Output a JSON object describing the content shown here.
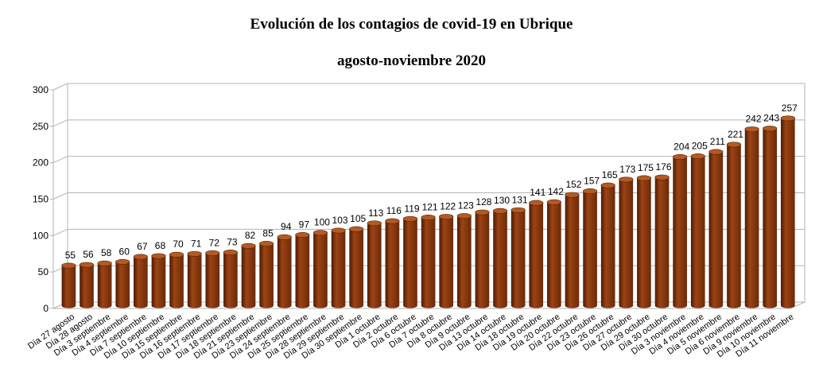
{
  "chart_data": {
    "type": "bar",
    "title": "Evolución de los contagios de covid-19 en Ubrique",
    "subtitle": "agosto-noviembre 2020",
    "xlabel": "",
    "ylabel": "",
    "ylim": [
      0,
      300
    ],
    "yticks": [
      "0",
      "50",
      "100",
      "150",
      "200",
      "250",
      "300"
    ],
    "grid": true,
    "legend": "none",
    "bar_color": "#8b3a0e",
    "categories": [
      "Día 27 agosto",
      "Día 28 agosto",
      "Día 3 septiembre",
      "Día 4 septiembre",
      "Día 7 septiembre",
      "Día 10 septiembre",
      "Día 15 septiembre",
      "Día 16 septiembre",
      "Día 17 septiembre",
      "Día 18 septiembre",
      "Día 21 septiembre",
      "Día 23 septiembre",
      "Día 24 septiembre",
      "Día 25 septiembre",
      "Día 28 septiembre",
      "Día 29 septiembre",
      "Día 30 septiembre",
      "Día 1 octubre",
      "Día 2 octubre",
      "Día 6 octubre",
      "Día 7 octubre",
      "Día 8 octubre",
      "Día 9 octubre",
      "Día 13 octubre",
      "Día 14 octubre",
      "Día 18 octubre",
      "Día 19 octubre",
      "Día 20 octubre",
      "Día 22 octubre",
      "Día 23 octubre",
      "Día 26 octubre",
      "Día 27 octubre",
      "Día 29 octubre",
      "Día 30 octubre",
      "Día 3 noviembre",
      "Día 4 noviembre",
      "Día 5 noviembre",
      "Día 6 noviembre",
      "Día 9 noviembre",
      "Día 10 noviembre",
      "Día 11 noviembre"
    ],
    "values": [
      55,
      56,
      58,
      60,
      67,
      68,
      70,
      71,
      72,
      73,
      82,
      85,
      94,
      97,
      100,
      103,
      105,
      113,
      116,
      119,
      121,
      122,
      123,
      128,
      130,
      131,
      141,
      142,
      152,
      157,
      165,
      173,
      175,
      176,
      204,
      205,
      211,
      221,
      242,
      243,
      257
    ]
  }
}
